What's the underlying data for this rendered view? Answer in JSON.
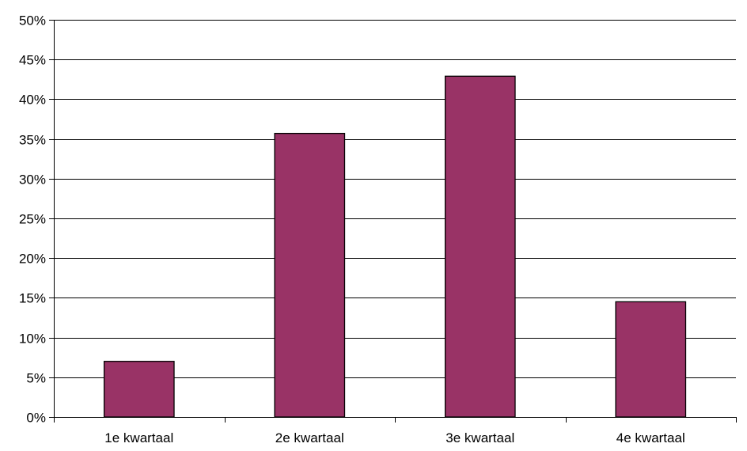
{
  "chart_data": {
    "type": "bar",
    "categories": [
      "1e kwartaal",
      "2e kwartaal",
      "3e kwartaal",
      "4e kwartaal"
    ],
    "values": [
      7,
      35.7,
      42.9,
      14.5
    ],
    "ylim": [
      0,
      50
    ],
    "ytick_step": 5,
    "ytick_labels": [
      "0%",
      "5%",
      "10%",
      "15%",
      "20%",
      "25%",
      "30%",
      "35%",
      "40%",
      "45%",
      "50%"
    ],
    "grid": true,
    "legend": "none",
    "bar_color": "#993366",
    "bar_edge_color": "#000000"
  }
}
